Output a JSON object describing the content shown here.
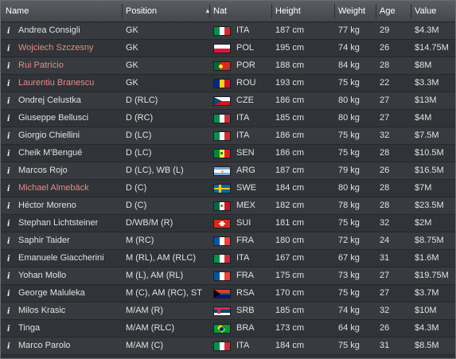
{
  "header": {
    "info": "",
    "name": "Name",
    "position": "Position",
    "sort_arrow": "▲",
    "nat": "Nat",
    "height": "Height",
    "weight": "Weight",
    "age": "Age",
    "value": "Value"
  },
  "info_glyph": "i",
  "players": [
    {
      "name": "Andrea Consigli",
      "position": "GK",
      "nat": "ITA",
      "height": "187 cm",
      "weight": "77 kg",
      "age": "29",
      "value": "$4.3M",
      "highlight": false
    },
    {
      "name": "Wojciech Szczesny",
      "position": "GK",
      "nat": "POL",
      "height": "195 cm",
      "weight": "74 kg",
      "age": "26",
      "value": "$14.75M",
      "highlight": true
    },
    {
      "name": "Rui Patrício",
      "position": "GK",
      "nat": "POR",
      "height": "188 cm",
      "weight": "84 kg",
      "age": "28",
      "value": "$8M",
      "highlight": true
    },
    {
      "name": "Laurentiu Branescu",
      "position": "GK",
      "nat": "ROU",
      "height": "193 cm",
      "weight": "75 kg",
      "age": "22",
      "value": "$3.3M",
      "highlight": true
    },
    {
      "name": "Ondrej Celustka",
      "position": "D (RLC)",
      "nat": "CZE",
      "height": "186 cm",
      "weight": "80 kg",
      "age": "27",
      "value": "$13M",
      "highlight": false
    },
    {
      "name": "Giuseppe Bellusci",
      "position": "D (RC)",
      "nat": "ITA",
      "height": "185 cm",
      "weight": "80 kg",
      "age": "27",
      "value": "$4M",
      "highlight": false
    },
    {
      "name": "Giorgio Chiellini",
      "position": "D (LC)",
      "nat": "ITA",
      "height": "186 cm",
      "weight": "75 kg",
      "age": "32",
      "value": "$7.5M",
      "highlight": false
    },
    {
      "name": "Cheik M'Bengué",
      "position": "D (LC)",
      "nat": "SEN",
      "height": "186 cm",
      "weight": "75 kg",
      "age": "28",
      "value": "$10.5M",
      "highlight": false
    },
    {
      "name": "Marcos Rojo",
      "position": "D (LC), WB (L)",
      "nat": "ARG",
      "height": "187 cm",
      "weight": "79 kg",
      "age": "26",
      "value": "$16.5M",
      "highlight": false
    },
    {
      "name": "Michael Almebäck",
      "position": "D (C)",
      "nat": "SWE",
      "height": "184 cm",
      "weight": "80 kg",
      "age": "28",
      "value": "$7M",
      "highlight": true
    },
    {
      "name": "Héctor Moreno",
      "position": "D (C)",
      "nat": "MEX",
      "height": "182 cm",
      "weight": "78 kg",
      "age": "28",
      "value": "$23.5M",
      "highlight": false
    },
    {
      "name": "Stephan Lichtsteiner",
      "position": "D/WB/M (R)",
      "nat": "SUI",
      "height": "181 cm",
      "weight": "75 kg",
      "age": "32",
      "value": "$2M",
      "highlight": false
    },
    {
      "name": "Saphir Taider",
      "position": "M (RC)",
      "nat": "FRA",
      "height": "180 cm",
      "weight": "72 kg",
      "age": "24",
      "value": "$8.75M",
      "highlight": false
    },
    {
      "name": "Emanuele Giaccherini",
      "position": "M (RL), AM (RLC)",
      "nat": "ITA",
      "height": "167 cm",
      "weight": "67 kg",
      "age": "31",
      "value": "$1.6M",
      "highlight": false
    },
    {
      "name": "Yohan Mollo",
      "position": "M (L), AM (RL)",
      "nat": "FRA",
      "height": "175 cm",
      "weight": "73 kg",
      "age": "27",
      "value": "$19.75M",
      "highlight": false
    },
    {
      "name": "George Maluleka",
      "position": "M (C), AM (RC), ST",
      "nat": "RSA",
      "height": "170 cm",
      "weight": "75 kg",
      "age": "27",
      "value": "$3.7M",
      "highlight": false
    },
    {
      "name": "Milos Krasic",
      "position": "M/AM (R)",
      "nat": "SRB",
      "height": "185 cm",
      "weight": "74 kg",
      "age": "32",
      "value": "$10M",
      "highlight": false
    },
    {
      "name": "Tinga",
      "position": "M/AM (RLC)",
      "nat": "BRA",
      "height": "173 cm",
      "weight": "64 kg",
      "age": "26",
      "value": "$4.3M",
      "highlight": false
    },
    {
      "name": "Marco Parolo",
      "position": "M/AM (C)",
      "nat": "ITA",
      "height": "184 cm",
      "weight": "75 kg",
      "age": "31",
      "value": "$8.5M",
      "highlight": false
    }
  ],
  "colors": {
    "header_bg": "#4f5358",
    "row_even": "#373a3e",
    "row_odd": "#303337",
    "text": "#e2e2e2",
    "highlight_name": "#e98a8a"
  }
}
